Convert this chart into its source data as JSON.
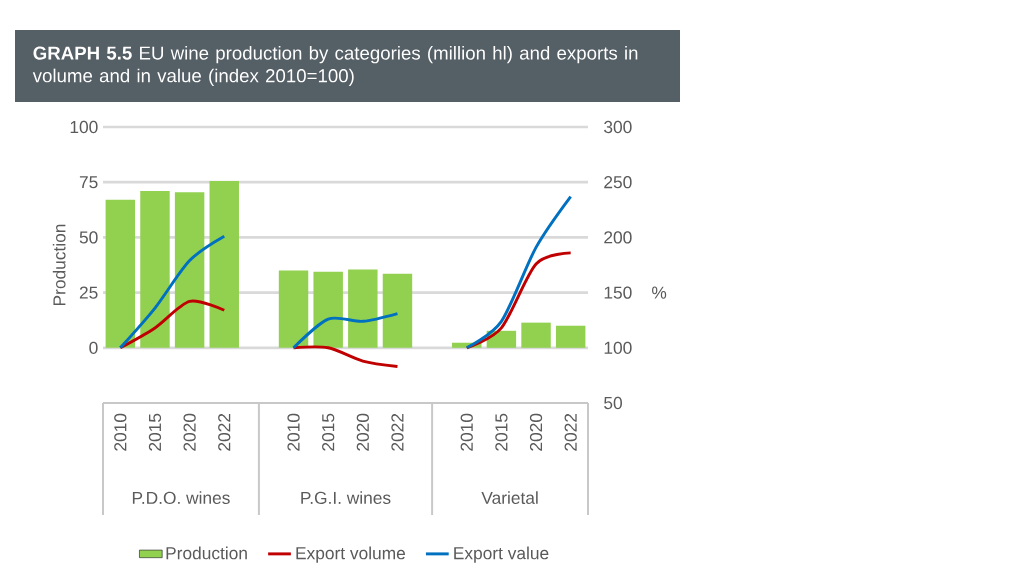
{
  "chart_data": {
    "type": "bar",
    "title": "**GRAPH 5.5** EU wine production by categories (million hl) and exports in volume and in value (index 2010=100)",
    "ylabel": "Production",
    "y2label": "%",
    "categories": [
      "2010",
      "2015",
      "2020",
      "2022",
      null,
      "2010",
      "2015",
      "2020",
      "2022",
      null,
      "2010",
      "2015",
      "2020",
      "2022"
    ],
    "series": [
      {
        "name": "Production",
        "color": "#92d050",
        "values": [
          67,
          71,
          70.5,
          75.5,
          null,
          35,
          34.5,
          35.5,
          33.5,
          null,
          2.3,
          7.7,
          11.4,
          10
        ]
      },
      {
        "name": "Export volume",
        "type": "line",
        "axis": "y2",
        "color": "#c00000",
        "values": [
          100,
          118,
          142,
          134,
          null,
          100,
          100,
          88,
          83,
          null,
          100,
          118,
          176,
          186
        ]
      },
      {
        "name": "Export value",
        "type": "line",
        "axis": "y2",
        "color": "#0070c0",
        "values": [
          100,
          136,
          179,
          201,
          null,
          100,
          126,
          124,
          131,
          null,
          100,
          124,
          191,
          237
        ]
      }
    ],
    "ylim": [
      -25,
      100
    ],
    "yticks": [
      0,
      25,
      50,
      75,
      100
    ],
    "y2lim": [
      50,
      300
    ],
    "y2ticks": [
      50,
      100,
      150,
      200,
      250,
      300
    ],
    "grid": "y",
    "legend": "bottom",
    "marker": "none",
    "annotations": [
      "P.D.O. wines",
      "P.G.I. wines",
      "Varietal"
    ]
  }
}
